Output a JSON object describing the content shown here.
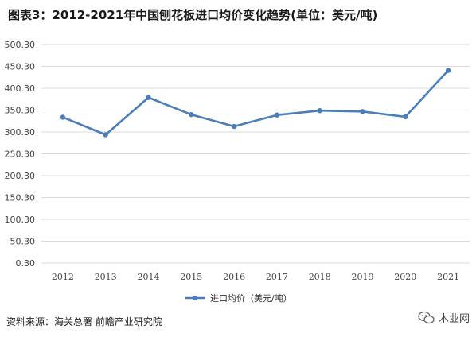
{
  "title": "图表3：2012-2021年中国刨花板进口均价变化趋势(单位：美元/吨)",
  "source": "资料来源：海关总署 前瞻产业研究院",
  "watermark": "木业网",
  "chart_data": {
    "type": "line",
    "categories": [
      "2012",
      "2013",
      "2014",
      "2015",
      "2016",
      "2017",
      "2018",
      "2019",
      "2020",
      "2021"
    ],
    "series": [
      {
        "name": "进口均价（美元/吨）",
        "values": [
          334,
          294,
          379,
          340,
          313,
          339,
          349,
          347,
          335,
          441
        ],
        "color": "#4a7ebb"
      }
    ],
    "yticks": [
      "0.30",
      "50.30",
      "100.30",
      "150.30",
      "200.30",
      "250.30",
      "300.30",
      "350.30",
      "400.30",
      "450.30",
      "500.30"
    ],
    "ylim": [
      0.3,
      500.3
    ],
    "grid": true,
    "legend": "bottom"
  }
}
